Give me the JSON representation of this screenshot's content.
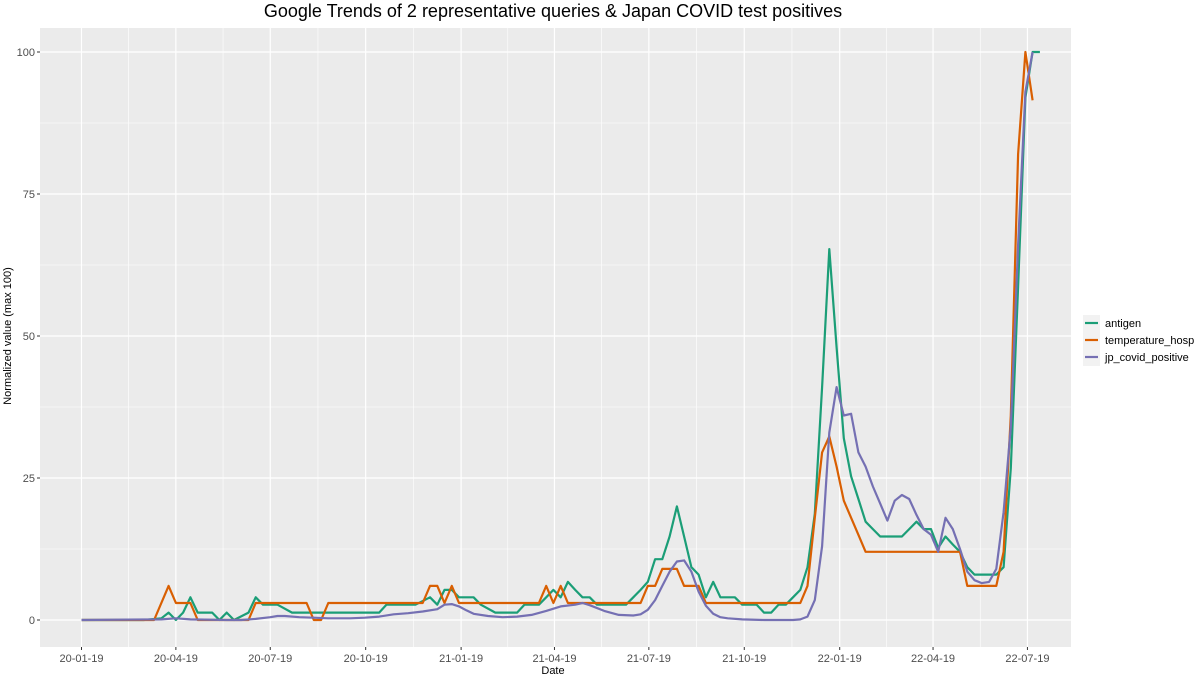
{
  "chart_data": {
    "type": "line",
    "title": "Google Trends of 2 representative queries & Japan COVID test positives",
    "xlabel": "Date",
    "ylabel": "Normalized value (max 100)",
    "ylim": [
      0,
      100
    ],
    "yticks": [
      0,
      25,
      50,
      75,
      100
    ],
    "xlim": [
      "2019-12-10",
      "2022-08-30"
    ],
    "xticks": [
      {
        "date": "2020-01-19",
        "label": "20-01-19"
      },
      {
        "date": "2020-04-19",
        "label": "20-04-19"
      },
      {
        "date": "2020-07-19",
        "label": "20-07-19"
      },
      {
        "date": "2020-10-19",
        "label": "20-10-19"
      },
      {
        "date": "2021-01-19",
        "label": "21-01-19"
      },
      {
        "date": "2021-04-19",
        "label": "21-04-19"
      },
      {
        "date": "2021-07-19",
        "label": "21-07-19"
      },
      {
        "date": "2021-10-19",
        "label": "21-10-19"
      },
      {
        "date": "2022-01-19",
        "label": "22-01-19"
      },
      {
        "date": "2022-04-19",
        "label": "22-04-19"
      },
      {
        "date": "2022-07-19",
        "label": "22-07-19"
      }
    ],
    "grid": true,
    "legend_position": "right",
    "colors": {
      "panel_bg": "#ebebeb",
      "grid": "#ffffff"
    },
    "series": [
      {
        "name": "antigen",
        "color": "#1b9e77",
        "points": [
          [
            "2020-01-19",
            0
          ],
          [
            "2020-02-19",
            0
          ],
          [
            "2020-03-19",
            0
          ],
          [
            "2020-04-05",
            0.3
          ],
          [
            "2020-04-12",
            1.3
          ],
          [
            "2020-04-19",
            0
          ],
          [
            "2020-04-26",
            1.3
          ],
          [
            "2020-05-03",
            4
          ],
          [
            "2020-05-10",
            1.3
          ],
          [
            "2020-05-24",
            1.3
          ],
          [
            "2020-05-31",
            0
          ],
          [
            "2020-06-07",
            1.3
          ],
          [
            "2020-06-14",
            0
          ],
          [
            "2020-06-28",
            1.3
          ],
          [
            "2020-07-05",
            4
          ],
          [
            "2020-07-12",
            2.7
          ],
          [
            "2020-07-26",
            2.7
          ],
          [
            "2020-08-09",
            1.3
          ],
          [
            "2020-08-23",
            1.3
          ],
          [
            "2020-09-20",
            1.3
          ],
          [
            "2020-10-19",
            1.3
          ],
          [
            "2020-11-01",
            1.3
          ],
          [
            "2020-11-08",
            2.7
          ],
          [
            "2020-12-06",
            2.7
          ],
          [
            "2020-12-20",
            4
          ],
          [
            "2020-12-27",
            2.7
          ],
          [
            "2021-01-03",
            5.3
          ],
          [
            "2021-01-10",
            5.3
          ],
          [
            "2021-01-17",
            4
          ],
          [
            "2021-01-31",
            4
          ],
          [
            "2021-02-07",
            2.7
          ],
          [
            "2021-02-21",
            1.3
          ],
          [
            "2021-03-14",
            1.3
          ],
          [
            "2021-03-21",
            2.7
          ],
          [
            "2021-04-04",
            2.7
          ],
          [
            "2021-04-11",
            4
          ],
          [
            "2021-04-18",
            5.3
          ],
          [
            "2021-04-25",
            4
          ],
          [
            "2021-05-02",
            6.7
          ],
          [
            "2021-05-09",
            5.3
          ],
          [
            "2021-05-16",
            4
          ],
          [
            "2021-05-23",
            4
          ],
          [
            "2021-05-30",
            2.7
          ],
          [
            "2021-06-20",
            2.7
          ],
          [
            "2021-06-27",
            2.7
          ],
          [
            "2021-07-04",
            4
          ],
          [
            "2021-07-11",
            5.3
          ],
          [
            "2021-07-18",
            6.7
          ],
          [
            "2021-07-25",
            10.7
          ],
          [
            "2021-08-01",
            10.7
          ],
          [
            "2021-08-08",
            14.7
          ],
          [
            "2021-08-15",
            20
          ],
          [
            "2021-08-22",
            14.7
          ],
          [
            "2021-08-29",
            9.3
          ],
          [
            "2021-09-05",
            8
          ],
          [
            "2021-09-12",
            4
          ],
          [
            "2021-09-19",
            6.7
          ],
          [
            "2021-09-26",
            4
          ],
          [
            "2021-10-03",
            4
          ],
          [
            "2021-10-10",
            4
          ],
          [
            "2021-10-17",
            2.7
          ],
          [
            "2021-10-31",
            2.7
          ],
          [
            "2021-11-07",
            1.3
          ],
          [
            "2021-11-14",
            1.3
          ],
          [
            "2021-11-21",
            2.7
          ],
          [
            "2021-11-28",
            2.7
          ],
          [
            "2021-12-05",
            4
          ],
          [
            "2021-12-12",
            5.3
          ],
          [
            "2021-12-19",
            9.3
          ],
          [
            "2021-12-26",
            18.7
          ],
          [
            "2022-01-02",
            41
          ],
          [
            "2022-01-09",
            65.3
          ],
          [
            "2022-01-16",
            48
          ],
          [
            "2022-01-23",
            32
          ],
          [
            "2022-01-30",
            25.3
          ],
          [
            "2022-02-06",
            21.3
          ],
          [
            "2022-02-13",
            17.3
          ],
          [
            "2022-02-20",
            16
          ],
          [
            "2022-02-27",
            14.7
          ],
          [
            "2022-03-13",
            14.7
          ],
          [
            "2022-03-20",
            14.7
          ],
          [
            "2022-03-27",
            16
          ],
          [
            "2022-04-03",
            17.3
          ],
          [
            "2022-04-10",
            16
          ],
          [
            "2022-04-17",
            16
          ],
          [
            "2022-04-24",
            12.7
          ],
          [
            "2022-05-01",
            14.7
          ],
          [
            "2022-05-08",
            13.3
          ],
          [
            "2022-05-15",
            12
          ],
          [
            "2022-05-22",
            9.3
          ],
          [
            "2022-05-29",
            8
          ],
          [
            "2022-06-05",
            8
          ],
          [
            "2022-06-12",
            8
          ],
          [
            "2022-06-19",
            8
          ],
          [
            "2022-06-26",
            9.3
          ],
          [
            "2022-07-03",
            26.7
          ],
          [
            "2022-07-10",
            58.7
          ],
          [
            "2022-07-17",
            92
          ],
          [
            "2022-07-24",
            100
          ],
          [
            "2022-07-31",
            100
          ]
        ]
      },
      {
        "name": "temperature_hosp",
        "color": "#d95f02",
        "points": [
          [
            "2020-01-19",
            0
          ],
          [
            "2020-03-19",
            0
          ],
          [
            "2020-03-29",
            0
          ],
          [
            "2020-04-12",
            6
          ],
          [
            "2020-04-19",
            3
          ],
          [
            "2020-05-03",
            3
          ],
          [
            "2020-05-10",
            0
          ],
          [
            "2020-06-21",
            0
          ],
          [
            "2020-06-28",
            0
          ],
          [
            "2020-07-05",
            3
          ],
          [
            "2020-07-19",
            3
          ],
          [
            "2020-08-23",
            3
          ],
          [
            "2020-08-30",
            0
          ],
          [
            "2020-09-06",
            0
          ],
          [
            "2020-09-13",
            3
          ],
          [
            "2020-12-13",
            3
          ],
          [
            "2020-12-20",
            6
          ],
          [
            "2020-12-27",
            6
          ],
          [
            "2021-01-03",
            3
          ],
          [
            "2021-01-10",
            6
          ],
          [
            "2021-01-17",
            3
          ],
          [
            "2021-04-04",
            3
          ],
          [
            "2021-04-11",
            6
          ],
          [
            "2021-04-18",
            3
          ],
          [
            "2021-04-25",
            6
          ],
          [
            "2021-05-02",
            3
          ],
          [
            "2021-07-11",
            3
          ],
          [
            "2021-07-18",
            6
          ],
          [
            "2021-07-25",
            6
          ],
          [
            "2021-08-01",
            9
          ],
          [
            "2021-08-15",
            9
          ],
          [
            "2021-08-22",
            6
          ],
          [
            "2021-09-05",
            6
          ],
          [
            "2021-09-12",
            3
          ],
          [
            "2021-12-12",
            3
          ],
          [
            "2021-12-19",
            6
          ],
          [
            "2021-12-26",
            18
          ],
          [
            "2022-01-02",
            29.5
          ],
          [
            "2022-01-09",
            32.3
          ],
          [
            "2022-01-16",
            27
          ],
          [
            "2022-01-23",
            21
          ],
          [
            "2022-02-06",
            15
          ],
          [
            "2022-02-13",
            12
          ],
          [
            "2022-02-20",
            12
          ],
          [
            "2022-05-15",
            12
          ],
          [
            "2022-05-22",
            6
          ],
          [
            "2022-06-19",
            6
          ],
          [
            "2022-06-26",
            12
          ],
          [
            "2022-07-03",
            36
          ],
          [
            "2022-07-10",
            82
          ],
          [
            "2022-07-17",
            100
          ],
          [
            "2022-07-24",
            91.5
          ]
        ]
      },
      {
        "name": "jp_covid_positive",
        "color": "#7570b3",
        "points": [
          [
            "2020-01-19",
            0
          ],
          [
            "2020-04-05",
            0.1
          ],
          [
            "2020-04-19",
            0.3
          ],
          [
            "2020-05-03",
            0.1
          ],
          [
            "2020-06-07",
            0
          ],
          [
            "2020-06-21",
            0
          ],
          [
            "2020-07-05",
            0.2
          ],
          [
            "2020-07-19",
            0.5
          ],
          [
            "2020-07-26",
            0.7
          ],
          [
            "2020-08-02",
            0.7
          ],
          [
            "2020-08-16",
            0.5
          ],
          [
            "2020-08-30",
            0.4
          ],
          [
            "2020-09-13",
            0.3
          ],
          [
            "2020-10-04",
            0.3
          ],
          [
            "2020-10-18",
            0.4
          ],
          [
            "2020-11-01",
            0.6
          ],
          [
            "2020-11-15",
            1
          ],
          [
            "2020-11-29",
            1.2
          ],
          [
            "2020-12-13",
            1.5
          ],
          [
            "2020-12-27",
            1.9
          ],
          [
            "2021-01-03",
            2.7
          ],
          [
            "2021-01-10",
            2.8
          ],
          [
            "2021-01-17",
            2.4
          ],
          [
            "2021-01-24",
            1.7
          ],
          [
            "2021-01-31",
            1.1
          ],
          [
            "2021-02-14",
            0.7
          ],
          [
            "2021-02-28",
            0.5
          ],
          [
            "2021-03-14",
            0.6
          ],
          [
            "2021-03-28",
            0.9
          ],
          [
            "2021-04-11",
            1.6
          ],
          [
            "2021-04-25",
            2.4
          ],
          [
            "2021-05-09",
            2.7
          ],
          [
            "2021-05-16",
            3
          ],
          [
            "2021-05-23",
            2.6
          ],
          [
            "2021-06-06",
            1.6
          ],
          [
            "2021-06-20",
            0.9
          ],
          [
            "2021-07-04",
            0.8
          ],
          [
            "2021-07-11",
            1
          ],
          [
            "2021-07-18",
            1.8
          ],
          [
            "2021-07-25",
            3.5
          ],
          [
            "2021-08-01",
            6
          ],
          [
            "2021-08-08",
            8.5
          ],
          [
            "2021-08-15",
            10.3
          ],
          [
            "2021-08-22",
            10.5
          ],
          [
            "2021-08-29",
            8.5
          ],
          [
            "2021-09-05",
            5
          ],
          [
            "2021-09-12",
            2.5
          ],
          [
            "2021-09-19",
            1.1
          ],
          [
            "2021-09-26",
            0.5
          ],
          [
            "2021-10-03",
            0.3
          ],
          [
            "2021-10-17",
            0.1
          ],
          [
            "2021-11-07",
            0
          ],
          [
            "2021-11-28",
            0
          ],
          [
            "2021-12-05",
            0
          ],
          [
            "2021-12-12",
            0.1
          ],
          [
            "2021-12-19",
            0.6
          ],
          [
            "2021-12-26",
            3.5
          ],
          [
            "2022-01-02",
            13
          ],
          [
            "2022-01-09",
            33
          ],
          [
            "2022-01-16",
            41
          ],
          [
            "2022-01-23",
            36
          ],
          [
            "2022-01-30",
            36.3
          ],
          [
            "2022-02-06",
            29.5
          ],
          [
            "2022-02-13",
            27
          ],
          [
            "2022-02-20",
            23.5
          ],
          [
            "2022-02-27",
            20.5
          ],
          [
            "2022-03-06",
            17.5
          ],
          [
            "2022-03-13",
            21
          ],
          [
            "2022-03-20",
            22
          ],
          [
            "2022-03-27",
            21.3
          ],
          [
            "2022-04-03",
            18.5
          ],
          [
            "2022-04-10",
            16
          ],
          [
            "2022-04-17",
            15
          ],
          [
            "2022-04-24",
            12
          ],
          [
            "2022-05-01",
            18
          ],
          [
            "2022-05-08",
            16
          ],
          [
            "2022-05-15",
            12.5
          ],
          [
            "2022-05-22",
            8.5
          ],
          [
            "2022-05-29",
            7
          ],
          [
            "2022-06-05",
            6.5
          ],
          [
            "2022-06-12",
            6.7
          ],
          [
            "2022-06-19",
            9
          ],
          [
            "2022-06-26",
            19
          ],
          [
            "2022-07-03",
            34
          ],
          [
            "2022-07-10",
            66
          ],
          [
            "2022-07-17",
            93
          ],
          [
            "2022-07-24",
            100
          ]
        ]
      }
    ]
  }
}
